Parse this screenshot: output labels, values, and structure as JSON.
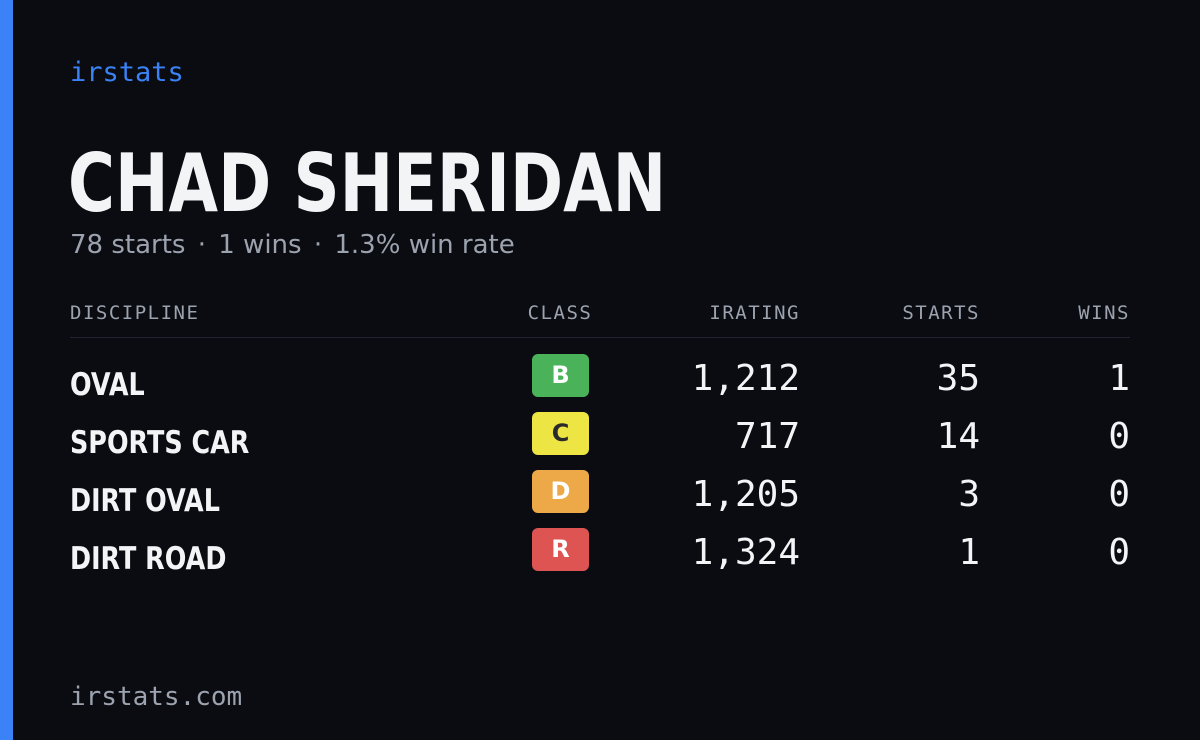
{
  "brand": "irstats",
  "driver": {
    "name": "CHAD SHERIDAN",
    "starts": "78 starts",
    "wins": "1 wins",
    "win_rate": "1.3% win rate",
    "separator": "·"
  },
  "table": {
    "headers": {
      "discipline": "DISCIPLINE",
      "class": "CLASS",
      "irating": "IRATING",
      "starts": "STARTS",
      "wins": "WINS"
    },
    "rows": [
      {
        "discipline": "OVAL",
        "class": "B",
        "class_color": "#4ab35a",
        "class_text_color": "#ffffff",
        "irating": "1,212",
        "starts": "35",
        "wins": "1"
      },
      {
        "discipline": "SPORTS CAR",
        "class": "C",
        "class_color": "#ece544",
        "class_text_color": "#2a2a2a",
        "irating": "717",
        "starts": "14",
        "wins": "0"
      },
      {
        "discipline": "DIRT OVAL",
        "class": "D",
        "class_color": "#eda848",
        "class_text_color": "#ffffff",
        "irating": "1,205",
        "starts": "3",
        "wins": "0"
      },
      {
        "discipline": "DIRT ROAD",
        "class": "R",
        "class_color": "#dd5452",
        "class_text_color": "#ffffff",
        "irating": "1,324",
        "starts": "1",
        "wins": "0"
      }
    ]
  },
  "footer": {
    "url": "irstats.com"
  },
  "colors": {
    "background": "#0a0c12",
    "accent": "#3b82f6",
    "text_primary": "#f3f4f6",
    "text_muted": "#9ca3af"
  }
}
